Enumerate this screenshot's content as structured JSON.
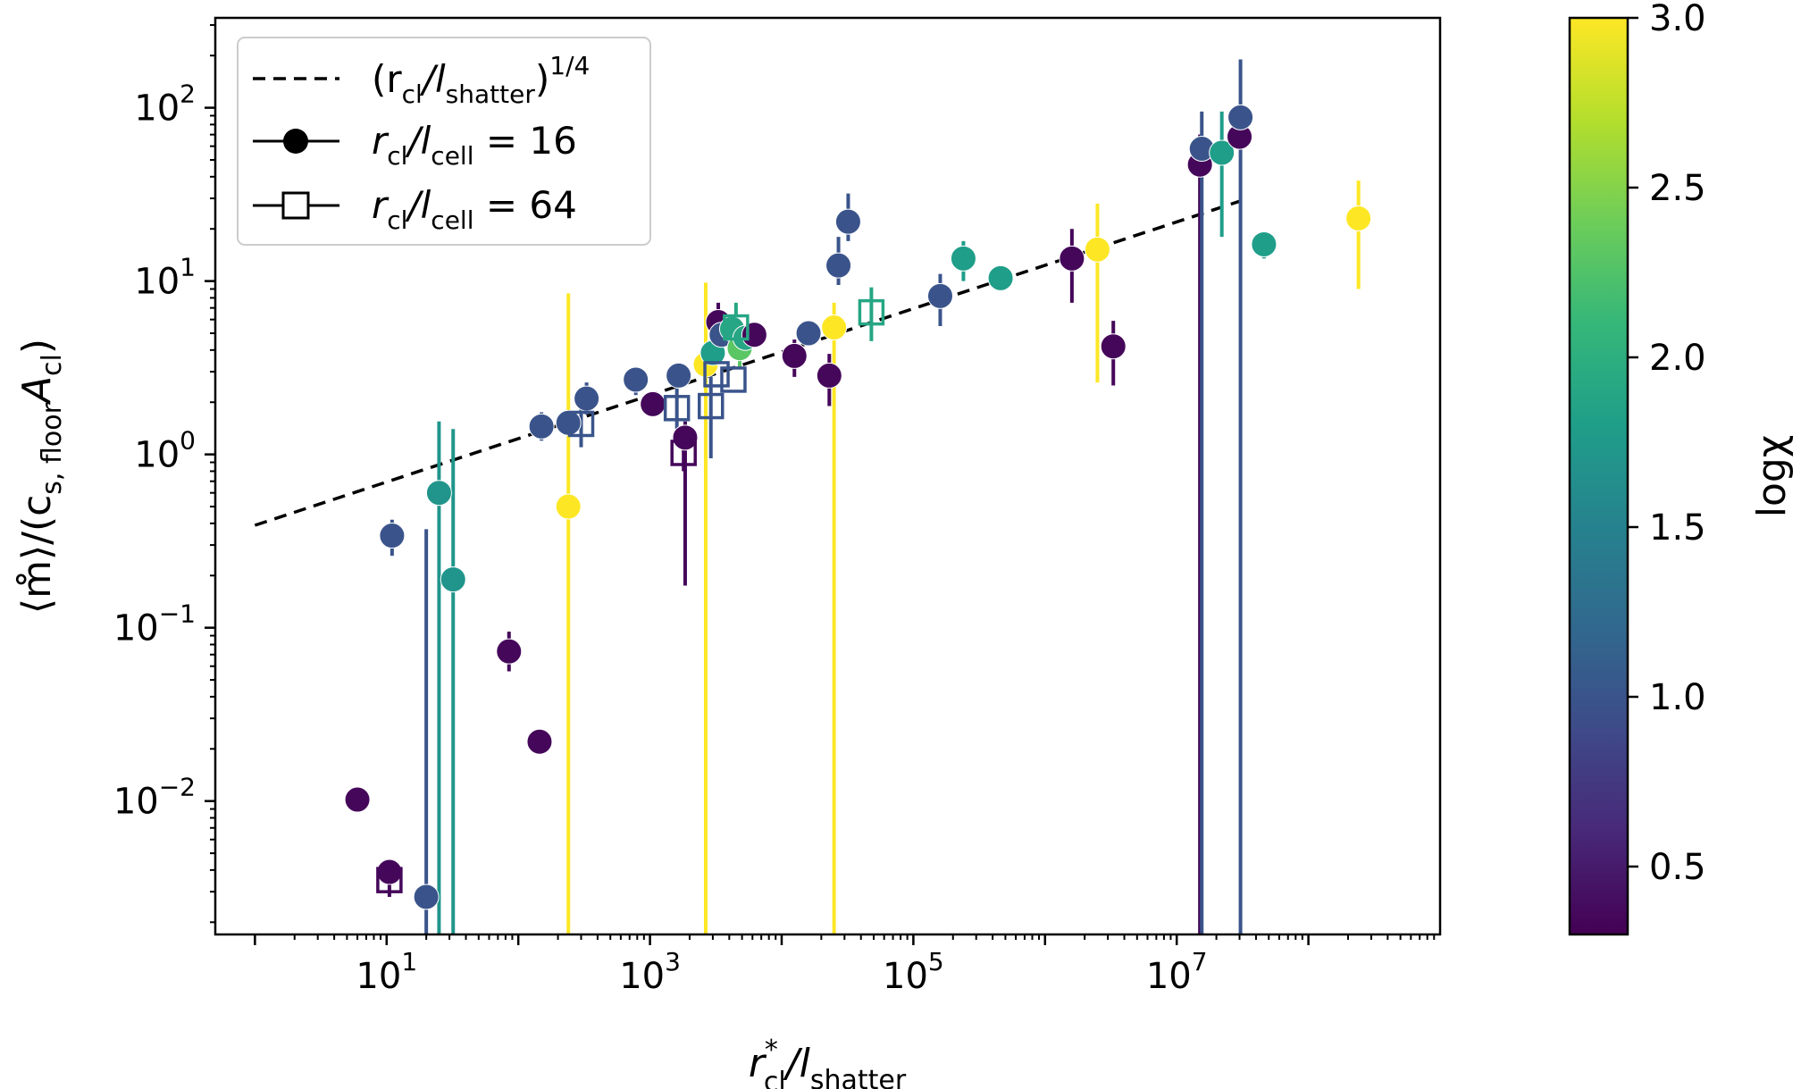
{
  "chart_data": {
    "type": "scatter",
    "title": "",
    "xlabel": {
      "base": "r",
      "sup": "*",
      "sub": "cl",
      "rest_base": "/l",
      "rest_sub": "shatter"
    },
    "ylabel": {
      "part1": "⟨m̊⟩/(c",
      "sub1": "s, floor",
      "part2": "A",
      "sub2": "cl",
      "part3": ")"
    },
    "x_scale": "log",
    "y_scale": "log",
    "xlim": [
      0.5,
      1000000000
    ],
    "ylim": [
      0.0017,
      330
    ],
    "x_ticks": [
      {
        "value": 10,
        "base": "10",
        "exp": "1"
      },
      {
        "value": 1000,
        "base": "10",
        "exp": "3"
      },
      {
        "value": 100000,
        "base": "10",
        "exp": "5"
      },
      {
        "value": 10000000,
        "base": "10",
        "exp": "7"
      }
    ],
    "y_ticks": [
      {
        "value": 0.01,
        "base": "10",
        "exp": "−2"
      },
      {
        "value": 0.1,
        "base": "10",
        "exp": "−1"
      },
      {
        "value": 1,
        "base": "10",
        "exp": "0"
      },
      {
        "value": 10,
        "base": "10",
        "exp": "1"
      },
      {
        "value": 100,
        "base": "10",
        "exp": "2"
      }
    ],
    "grid": false,
    "legend_position": "top-left",
    "legend": [
      {
        "kind": "dashed-line",
        "base": "(r",
        "sub": "cl",
        "mid": "/l",
        "sub2": "shatter",
        "tail": ")",
        "sup": "1/4"
      },
      {
        "kind": "filled-circle",
        "base": "r",
        "sub": "cl",
        "mid": "/l",
        "sub2": "cell",
        "tail": " = 16"
      },
      {
        "kind": "open-square",
        "base": "r",
        "sub": "cl",
        "mid": "/l",
        "sub2": "cell",
        "tail": " = 64"
      }
    ],
    "reference_line": {
      "name": "(r_cl/l_shatter)^(1/4)",
      "coef": 0.39,
      "exponent": 0.25,
      "x_range": [
        1,
        30000000
      ]
    },
    "colorbar": {
      "label": "logχ",
      "cmap": "viridis",
      "range": [
        0.3,
        3.0
      ],
      "ticks": [
        {
          "value": 0.5,
          "label": "0.5"
        },
        {
          "value": 1.0,
          "label": "1.0"
        },
        {
          "value": 1.5,
          "label": "1.5"
        },
        {
          "value": 2.0,
          "label": "2.0"
        },
        {
          "value": 2.5,
          "label": "2.5"
        },
        {
          "value": 3.0,
          "label": "3.0"
        }
      ]
    },
    "series": [
      {
        "marker": "filled-circle",
        "points": [
          {
            "x": 6,
            "y": 0.0102,
            "c": 0.35
          },
          {
            "x": 10.5,
            "y": 0.0039,
            "c": 0.35,
            "yerr": [
              0.0033,
              0.0046
            ]
          },
          {
            "x": 11,
            "y": 0.34,
            "c": 1.0,
            "yerr": [
              0.26,
              0.42
            ]
          },
          {
            "x": 20,
            "y": 0.0028,
            "c": 1.0,
            "yerr": [
              0.0017,
              0.37
            ]
          },
          {
            "x": 25,
            "y": 0.6,
            "c": 1.7,
            "yerr": [
              0.0017,
              1.55
            ]
          },
          {
            "x": 32,
            "y": 0.19,
            "c": 1.7,
            "yerr": [
              0.0017,
              1.4
            ]
          },
          {
            "x": 85,
            "y": 0.073,
            "c": 0.35,
            "yerr": [
              0.056,
              0.095
            ]
          },
          {
            "x": 145,
            "y": 0.022,
            "c": 0.35
          },
          {
            "x": 150,
            "y": 1.45,
            "c": 1.0,
            "yerr": [
              1.2,
              1.75
            ]
          },
          {
            "x": 240,
            "y": 1.52,
            "c": 1.0
          },
          {
            "x": 240,
            "y": 0.5,
            "c": 3.0,
            "yerr": [
              0.0017,
              8.5
            ]
          },
          {
            "x": 330,
            "y": 2.1,
            "c": 1.0,
            "yerr": [
              1.7,
              2.6
            ]
          },
          {
            "x": 780,
            "y": 2.7,
            "c": 1.0,
            "yerr": [
              2.2,
              3.2
            ]
          },
          {
            "x": 1050,
            "y": 1.95,
            "c": 0.35
          },
          {
            "x": 1650,
            "y": 2.85,
            "c": 1.0
          },
          {
            "x": 1850,
            "y": 1.25,
            "c": 0.35,
            "yerr": [
              0.175,
              1.55
            ]
          },
          {
            "x": 2650,
            "y": 3.3,
            "c": 3.0,
            "yerr": [
              0.0017,
              9.8
            ]
          },
          {
            "x": 3000,
            "y": 3.85,
            "c": 1.8
          },
          {
            "x": 3300,
            "y": 5.8,
            "c": 0.35,
            "yerr": [
              4.5,
              7.5
            ]
          },
          {
            "x": 3500,
            "y": 4.9,
            "c": 1.0
          },
          {
            "x": 4200,
            "y": 5.3,
            "c": 1.9
          },
          {
            "x": 4800,
            "y": 4.1,
            "c": 2.3,
            "yerr": [
              3.2,
              5.4
            ]
          },
          {
            "x": 5300,
            "y": 4.7,
            "c": 1.9
          },
          {
            "x": 6200,
            "y": 4.9,
            "c": 0.35
          },
          {
            "x": 12500,
            "y": 3.7,
            "c": 0.35,
            "yerr": [
              2.8,
              4.6
            ]
          },
          {
            "x": 16000,
            "y": 5.0,
            "c": 1.0
          },
          {
            "x": 23000,
            "y": 2.85,
            "c": 0.35,
            "yerr": [
              1.9,
              3.8
            ]
          },
          {
            "x": 25000,
            "y": 5.4,
            "c": 3.0,
            "yerr": [
              0.0017,
              7.5
            ]
          },
          {
            "x": 27000,
            "y": 12.3,
            "c": 1.0,
            "yerr": [
              9.5,
              18
            ]
          },
          {
            "x": 32000,
            "y": 22,
            "c": 1.0,
            "yerr": [
              17,
              32
            ]
          },
          {
            "x": 160000,
            "y": 8.2,
            "c": 1.0,
            "yerr": [
              5.5,
              11
            ]
          },
          {
            "x": 240000,
            "y": 13.5,
            "c": 1.8,
            "yerr": [
              10,
              17
            ]
          },
          {
            "x": 460000,
            "y": 10.4,
            "c": 1.8
          },
          {
            "x": 1600000,
            "y": 13.5,
            "c": 0.35,
            "yerr": [
              7.5,
              20
            ]
          },
          {
            "x": 2500000,
            "y": 15.2,
            "c": 3.0,
            "yerr": [
              2.6,
              28
            ]
          },
          {
            "x": 3300000,
            "y": 4.2,
            "c": 0.35,
            "yerr": [
              2.5,
              5.9
            ]
          },
          {
            "x": 15000000,
            "y": 47,
            "c": 0.35,
            "yerr": [
              0.0017,
              70
            ]
          },
          {
            "x": 15500000,
            "y": 58,
            "c": 1.0,
            "yerr": [
              0.0017,
              95
            ]
          },
          {
            "x": 22000000,
            "y": 55,
            "c": 1.8,
            "yerr": [
              18,
              95
            ]
          },
          {
            "x": 30000000,
            "y": 68,
            "c": 0.35
          },
          {
            "x": 30500000,
            "y": 88,
            "c": 1.0,
            "yerr": [
              0.0017,
              190
            ]
          },
          {
            "x": 46000000,
            "y": 16.3,
            "c": 1.8,
            "yerr": [
              13.5,
              19
            ]
          },
          {
            "x": 240000000,
            "y": 23,
            "c": 3.0,
            "yerr": [
              9,
              38
            ]
          }
        ]
      },
      {
        "marker": "open-square",
        "points": [
          {
            "x": 10.5,
            "y": 0.0035,
            "c": 0.35,
            "yerr": [
              0.0028,
              0.0043
            ]
          },
          {
            "x": 300,
            "y": 1.5,
            "c": 1.0,
            "yerr": [
              1.1,
              2.1
            ]
          },
          {
            "x": 1600,
            "y": 1.85,
            "c": 1.0,
            "yerr": [
              1.4,
              2.4
            ]
          },
          {
            "x": 1800,
            "y": 1.02,
            "c": 0.35,
            "yerr": [
              0.8,
              1.35
            ]
          },
          {
            "x": 2900,
            "y": 1.9,
            "c": 1.0,
            "yerr": [
              0.95,
              2.8
            ]
          },
          {
            "x": 3200,
            "y": 2.9,
            "c": 1.0
          },
          {
            "x": 4300,
            "y": 2.7,
            "c": 1.0
          },
          {
            "x": 4500,
            "y": 5.4,
            "c": 1.9,
            "yerr": [
              4.0,
              7.5
            ]
          },
          {
            "x": 48000,
            "y": 6.6,
            "c": 1.9,
            "yerr": [
              4.5,
              9.2
            ]
          }
        ]
      }
    ]
  }
}
